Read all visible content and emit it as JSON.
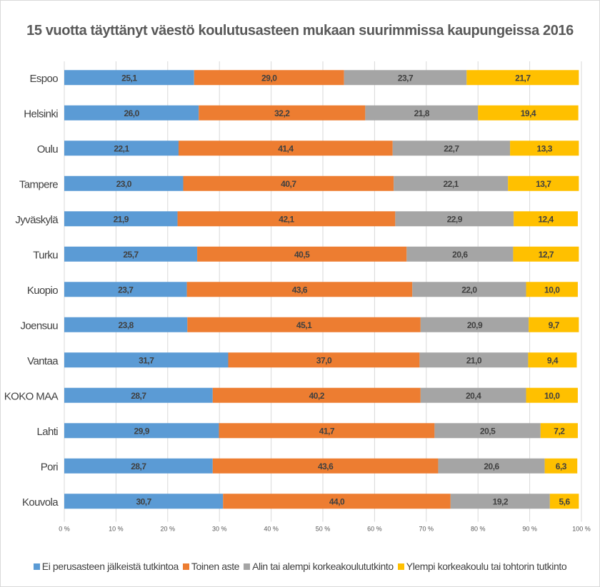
{
  "chart_data": {
    "type": "bar",
    "orientation": "horizontal",
    "stacked": "percent",
    "title": "15 vuotta täyttänyt väestö koulutusasteen mukaan suurimmissa kaupungeissa 2016",
    "categories": [
      "Espoo",
      "Helsinki",
      "Oulu",
      "Tampere",
      "Jyväskylä",
      "Turku",
      "Kuopio",
      "Joensuu",
      "Vantaa",
      "KOKO MAA",
      "Lahti",
      "Pori",
      "Kouvola"
    ],
    "series": [
      {
        "name": "Ei perusasteen jälkeistä tutkintoa",
        "color": "#5b9bd5",
        "values": [
          25.1,
          26.0,
          22.1,
          23.0,
          21.9,
          25.7,
          23.7,
          23.8,
          31.7,
          28.7,
          29.9,
          28.7,
          30.7
        ],
        "labels": [
          "25,1",
          "26,0",
          "22,1",
          "23,0",
          "21,9",
          "25,7",
          "23,7",
          "23,8",
          "31,7",
          "28,7",
          "29,9",
          "28,7",
          "30,7"
        ]
      },
      {
        "name": "Toinen aste",
        "color": "#ed7d31",
        "values": [
          29.0,
          32.2,
          41.4,
          40.7,
          42.1,
          40.5,
          43.6,
          45.1,
          37.0,
          40.2,
          41.7,
          43.6,
          44.0
        ],
        "labels": [
          "29,0",
          "32,2",
          "41,4",
          "40,7",
          "42,1",
          "40,5",
          "43,6",
          "45,1",
          "37,0",
          "40,2",
          "41,7",
          "43,6",
          "44,0"
        ]
      },
      {
        "name": "Alin tai alempi korkeakoulututkinto",
        "color": "#a5a5a5",
        "values": [
          23.7,
          21.8,
          22.7,
          22.1,
          22.9,
          20.6,
          22.0,
          20.9,
          21.0,
          20.4,
          20.5,
          20.6,
          19.2
        ],
        "labels": [
          "23,7",
          "21,8",
          "22,7",
          "22,1",
          "22,9",
          "20,6",
          "22,0",
          "20,9",
          "21,0",
          "20,4",
          "20,5",
          "20,6",
          "19,2"
        ]
      },
      {
        "name": "Ylempi korkeakoulu tai tohtorin tutkinto",
        "color": "#ffc000",
        "values": [
          21.7,
          19.4,
          13.3,
          13.7,
          12.4,
          12.7,
          10.0,
          9.7,
          9.4,
          10.0,
          7.2,
          6.3,
          5.6
        ],
        "labels": [
          "21,7",
          "19,4",
          "13,3",
          "13,7",
          "12,4",
          "12,7",
          "10,0",
          "9,7",
          "9,4",
          "10,0",
          "7,2",
          "6,3",
          "5,6"
        ]
      }
    ],
    "x_ticks": [
      "0 %",
      "10 %",
      "20 %",
      "30 %",
      "40 %",
      "50 %",
      "60 %",
      "70 %",
      "80 %",
      "90 %",
      "100 %"
    ],
    "xlim": [
      0,
      100
    ],
    "grid": true,
    "legend_position": "bottom"
  }
}
